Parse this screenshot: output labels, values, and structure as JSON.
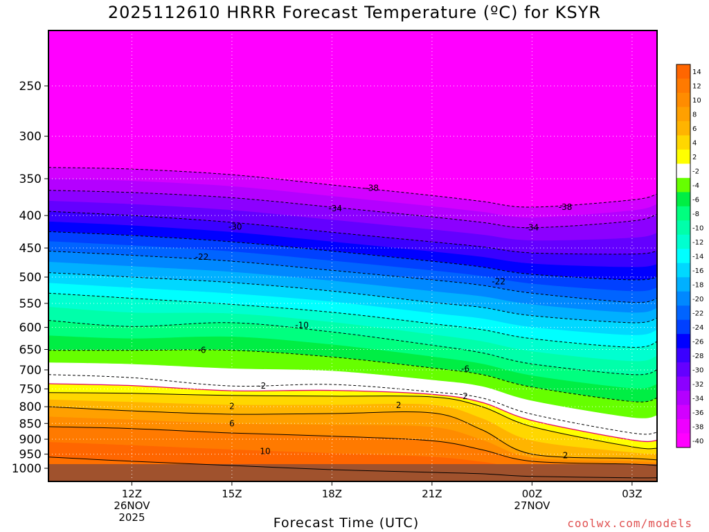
{
  "chart_data": {
    "type": "heatmap",
    "title": "2025112610 HRRR Forecast Temperature (ºC) for KSYR",
    "xlabel": "Forecast Time (UTC)",
    "ylabel": "",
    "credit": "coolwx.com/models",
    "y_axis": {
      "scale": "log-pressure",
      "inverted": true,
      "range": [
        1000,
        200
      ],
      "ticks": [
        250,
        300,
        350,
        400,
        450,
        500,
        550,
        600,
        650,
        700,
        750,
        800,
        850,
        900,
        950,
        1000
      ]
    },
    "x_axis": {
      "range_hours": [
        9.5,
        27.75
      ],
      "ticks": [
        {
          "hour": 12,
          "lines": [
            "12Z",
            "26NOV",
            "2025"
          ]
        },
        {
          "hour": 15,
          "lines": [
            "15Z"
          ]
        },
        {
          "hour": 18,
          "lines": [
            "18Z"
          ]
        },
        {
          "hour": 21,
          "lines": [
            "21Z"
          ]
        },
        {
          "hour": 24,
          "lines": [
            "00Z",
            "27NOV"
          ]
        },
        {
          "hour": 27,
          "lines": [
            "03Z"
          ]
        }
      ]
    },
    "grid": true,
    "ground_fill_color": "#a0522d",
    "colorbar": {
      "placement": "right",
      "levels": [
        14,
        12,
        10,
        8,
        6,
        4,
        2,
        -2,
        -4,
        -6,
        -8,
        -10,
        -12,
        -14,
        -16,
        -18,
        -20,
        -22,
        -24,
        -26,
        -28,
        -30,
        -32,
        -34,
        -36,
        -38,
        -40
      ],
      "colors": [
        "#ff6600",
        "#ff7a00",
        "#ff8c00",
        "#ffa000",
        "#ffb400",
        "#ffd700",
        "#ffff00",
        "#ffffff",
        "#66ff00",
        "#00ee44",
        "#00ff7f",
        "#00ffaa",
        "#00ffd0",
        "#00ffff",
        "#00d8ff",
        "#00b0ff",
        "#0088ff",
        "#0064ff",
        "#0040ff",
        "#0000ff",
        "#3a00ff",
        "#6400ff",
        "#8c00ff",
        "#b400ff",
        "#d200ff",
        "#ee00ff",
        "#ff00ff"
      ]
    },
    "contour_labels": [
      {
        "value": "-38",
        "hour": 19.2,
        "p": 362
      },
      {
        "value": "-38",
        "hour": 25.0,
        "p": 388
      },
      {
        "value": "-34",
        "hour": 18.1,
        "p": 390
      },
      {
        "value": "-34",
        "hour": 24.0,
        "p": 418
      },
      {
        "value": "-30",
        "hour": 15.1,
        "p": 417
      },
      {
        "value": "-22",
        "hour": 14.1,
        "p": 465
      },
      {
        "value": "-22",
        "hour": 23.0,
        "p": 508
      },
      {
        "value": "-10",
        "hour": 17.1,
        "p": 595
      },
      {
        "value": "-6",
        "hour": 14.1,
        "p": 652
      },
      {
        "value": "-6",
        "hour": 22.0,
        "p": 697
      },
      {
        "value": "-2",
        "hour": 15.9,
        "p": 742
      },
      {
        "value": "2",
        "hour": 22.0,
        "p": 770
      },
      {
        "value": "2",
        "hour": 15.0,
        "p": 799
      },
      {
        "value": "2",
        "hour": 20.0,
        "p": 796
      },
      {
        "value": "6",
        "hour": 15.0,
        "p": 850
      },
      {
        "value": "10",
        "hour": 16.0,
        "p": 940
      },
      {
        "value": "2",
        "hour": 25.0,
        "p": 955
      }
    ],
    "profiles": {
      "hours": [
        9.5,
        12,
        15,
        18,
        21,
        22.5,
        24,
        27,
        27.75
      ],
      "isotherms": [
        {
          "t": -38,
          "p": [
            336,
            338,
            345,
            358,
            372,
            380,
            388,
            378,
            370
          ]
        },
        {
          "t": -34,
          "p": [
            365,
            368,
            375,
            388,
            402,
            410,
            418,
            408,
            398
          ]
        },
        {
          "t": -30,
          "p": [
            394,
            400,
            410,
            425,
            440,
            448,
            458,
            460,
            455
          ]
        },
        {
          "t": -26,
          "p": [
            424,
            430,
            440,
            455,
            472,
            482,
            495,
            505,
            500
          ]
        },
        {
          "t": -22,
          "p": [
            455,
            462,
            472,
            488,
            505,
            515,
            530,
            548,
            540
          ]
        },
        {
          "t": -18,
          "p": [
            492,
            500,
            510,
            526,
            548,
            558,
            575,
            590,
            580
          ]
        },
        {
          "t": -14,
          "p": [
            530,
            540,
            552,
            568,
            592,
            605,
            625,
            645,
            632
          ]
        },
        {
          "t": -10,
          "p": [
            585,
            598,
            590,
            610,
            640,
            658,
            685,
            712,
            700
          ]
        },
        {
          "t": -6,
          "p": [
            652,
            652,
            652,
            668,
            695,
            712,
            745,
            785,
            775
          ]
        },
        {
          "t": -2,
          "p": [
            712,
            720,
            742,
            738,
            758,
            775,
            822,
            880,
            878
          ]
        },
        {
          "t": 2,
          "p": [
            760,
            762,
            768,
            770,
            772,
            800,
            860,
            925,
            930
          ]
        },
        {
          "t": 6,
          "p": [
            800,
            812,
            822,
            820,
            818,
            870,
            950,
            965,
            970
          ]
        },
        {
          "t": 10,
          "p": [
            860,
            866,
            880,
            890,
            905,
            935,
            975,
            985,
            990
          ]
        },
        {
          "t": 14,
          "p": [
            960,
            975,
            990,
            1005,
            1015,
            1020,
            1030,
            1035,
            1035
          ]
        }
      ]
    }
  }
}
